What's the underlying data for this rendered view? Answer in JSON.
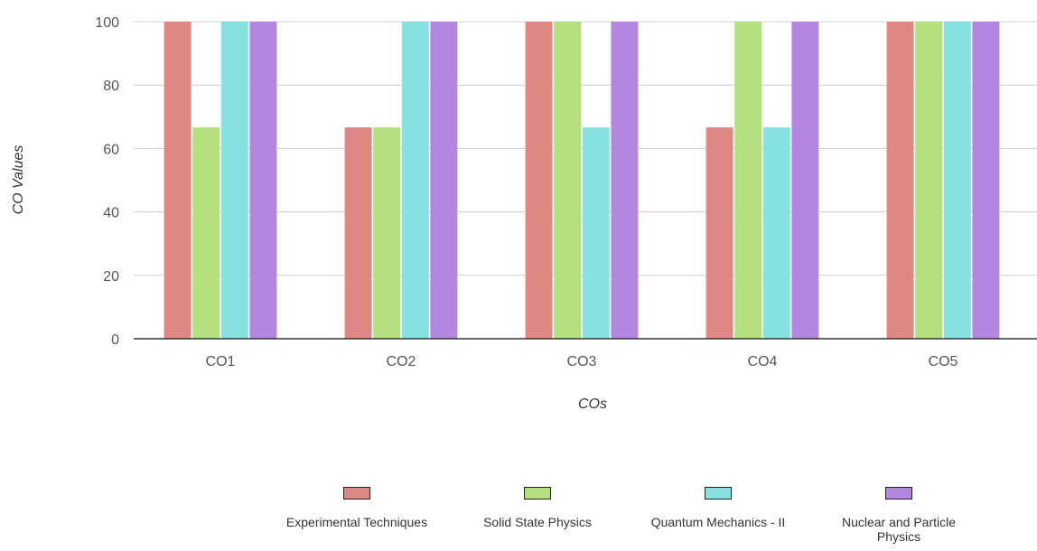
{
  "chart_data": {
    "type": "bar",
    "title": "",
    "xlabel": "COs",
    "ylabel": "CO Values",
    "ylim": [
      0,
      100
    ],
    "yticks": [
      0,
      20,
      40,
      60,
      80,
      100
    ],
    "grid": true,
    "legend_position": "bottom",
    "categories": [
      "CO1",
      "CO2",
      "CO3",
      "CO4",
      "CO5"
    ],
    "series": [
      {
        "name": "Experimental Techniques",
        "color": "#e08886",
        "values": [
          100,
          66.67,
          100,
          66.67,
          100
        ]
      },
      {
        "name": "Solid State Physics",
        "color": "#b4e07e",
        "values": [
          66.67,
          66.67,
          100,
          100,
          100
        ]
      },
      {
        "name": "Quantum Mechanics - II",
        "color": "#86e1e0",
        "values": [
          100,
          100,
          66.67,
          66.67,
          100
        ]
      },
      {
        "name": "Nuclear and Particle Physics",
        "color": "#b387e0",
        "values": [
          100,
          100,
          100,
          100,
          100
        ]
      }
    ]
  }
}
